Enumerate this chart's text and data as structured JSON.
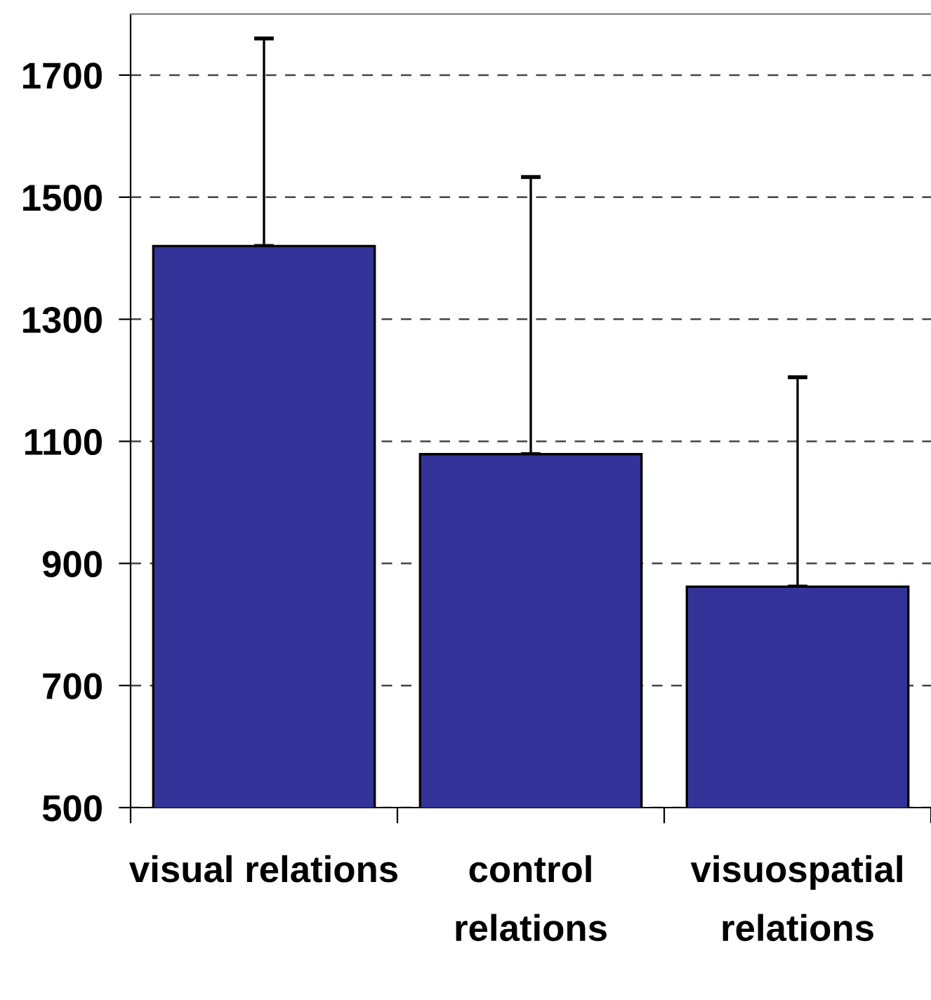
{
  "chart_data": {
    "type": "bar",
    "categories": [
      "visual relations",
      "control\nrelations",
      "visuospatial\nrelations"
    ],
    "values": [
      1420,
      1079,
      862
    ],
    "errors": [
      [
        1420,
        1760
      ],
      [
        1079,
        1533
      ],
      [
        862,
        1205
      ]
    ],
    "color": "#333399",
    "ylim": [
      500,
      1800
    ],
    "yticks": [
      500,
      700,
      900,
      1100,
      1300,
      1500,
      1700
    ],
    "grid": "y",
    "legend": false
  }
}
